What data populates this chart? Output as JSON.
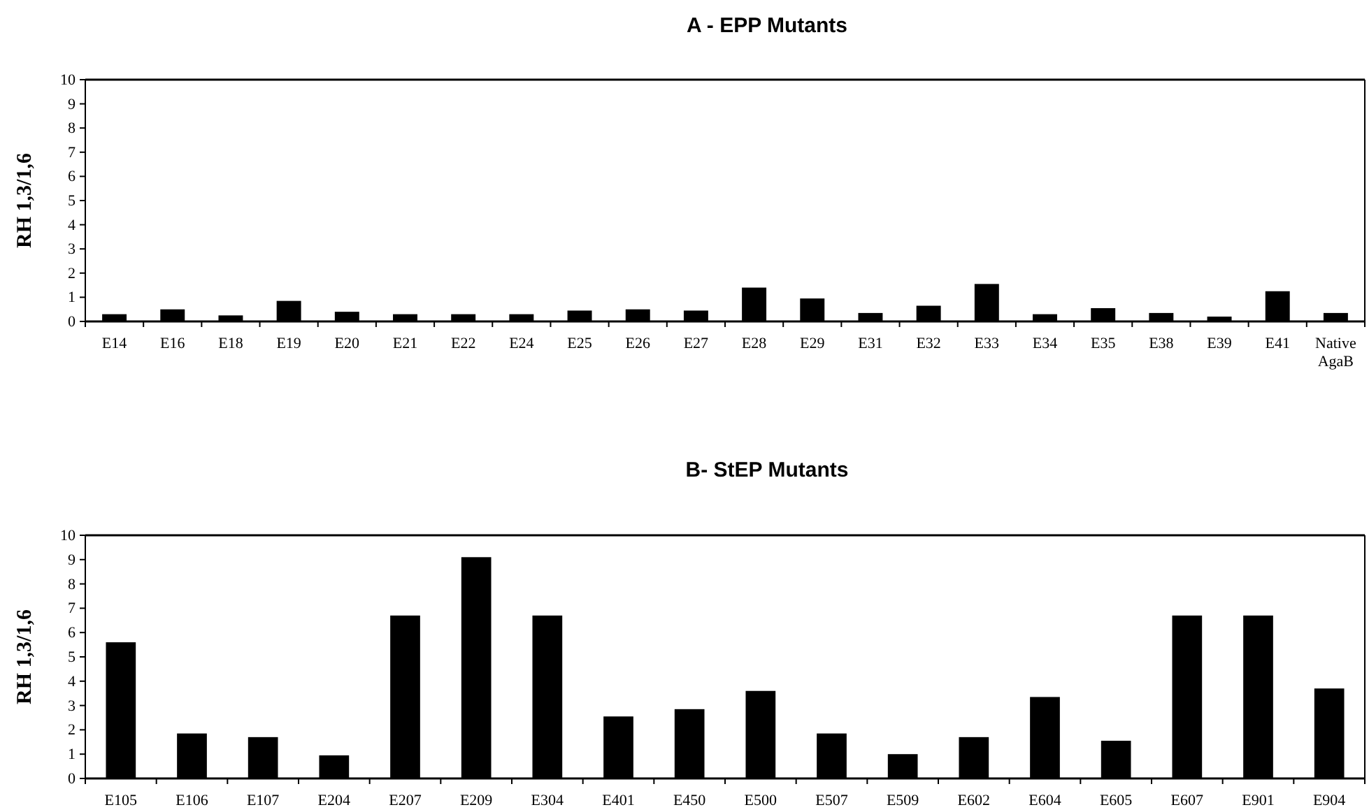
{
  "chart_data": [
    {
      "type": "bar",
      "title": "A - EPP Mutants",
      "ylabel": "RH 1,3/1,6",
      "categories": [
        "E14",
        "E16",
        "E18",
        "E19",
        "E20",
        "E21",
        "E22",
        "E24",
        "E25",
        "E26",
        "E27",
        "E28",
        "E29",
        "E31",
        "E32",
        "E33",
        "E34",
        "E35",
        "E38",
        "E39",
        "E41",
        "Native AgaB"
      ],
      "values": [
        0.3,
        0.5,
        0.25,
        0.85,
        0.4,
        0.3,
        0.3,
        0.3,
        0.45,
        0.5,
        0.45,
        1.4,
        0.95,
        0.35,
        0.65,
        1.55,
        0.3,
        0.55,
        0.35,
        0.2,
        1.25,
        0.35
      ],
      "color": "#000000",
      "ylim": [
        0,
        10
      ],
      "yticks": [
        0,
        1,
        2,
        3,
        4,
        5,
        6,
        7,
        8,
        9,
        10
      ]
    },
    {
      "type": "bar",
      "title": "B- StEP Mutants",
      "ylabel": "RH 1,3/1,6",
      "categories": [
        "E105",
        "E106",
        "E107",
        "E204",
        "E207",
        "E209",
        "E304",
        "E401",
        "E450",
        "E500",
        "E507",
        "E509",
        "E602",
        "E604",
        "E605",
        "E607",
        "E901",
        "E904"
      ],
      "values": [
        5.6,
        1.85,
        1.7,
        0.95,
        6.7,
        9.1,
        6.7,
        2.55,
        2.85,
        3.6,
        1.85,
        1.0,
        1.7,
        3.35,
        1.55,
        6.7,
        6.7,
        3.7
      ],
      "color": "#000000",
      "ylim": [
        0,
        10
      ],
      "yticks": [
        0,
        1,
        2,
        3,
        4,
        5,
        6,
        7,
        8,
        9,
        10
      ]
    }
  ]
}
